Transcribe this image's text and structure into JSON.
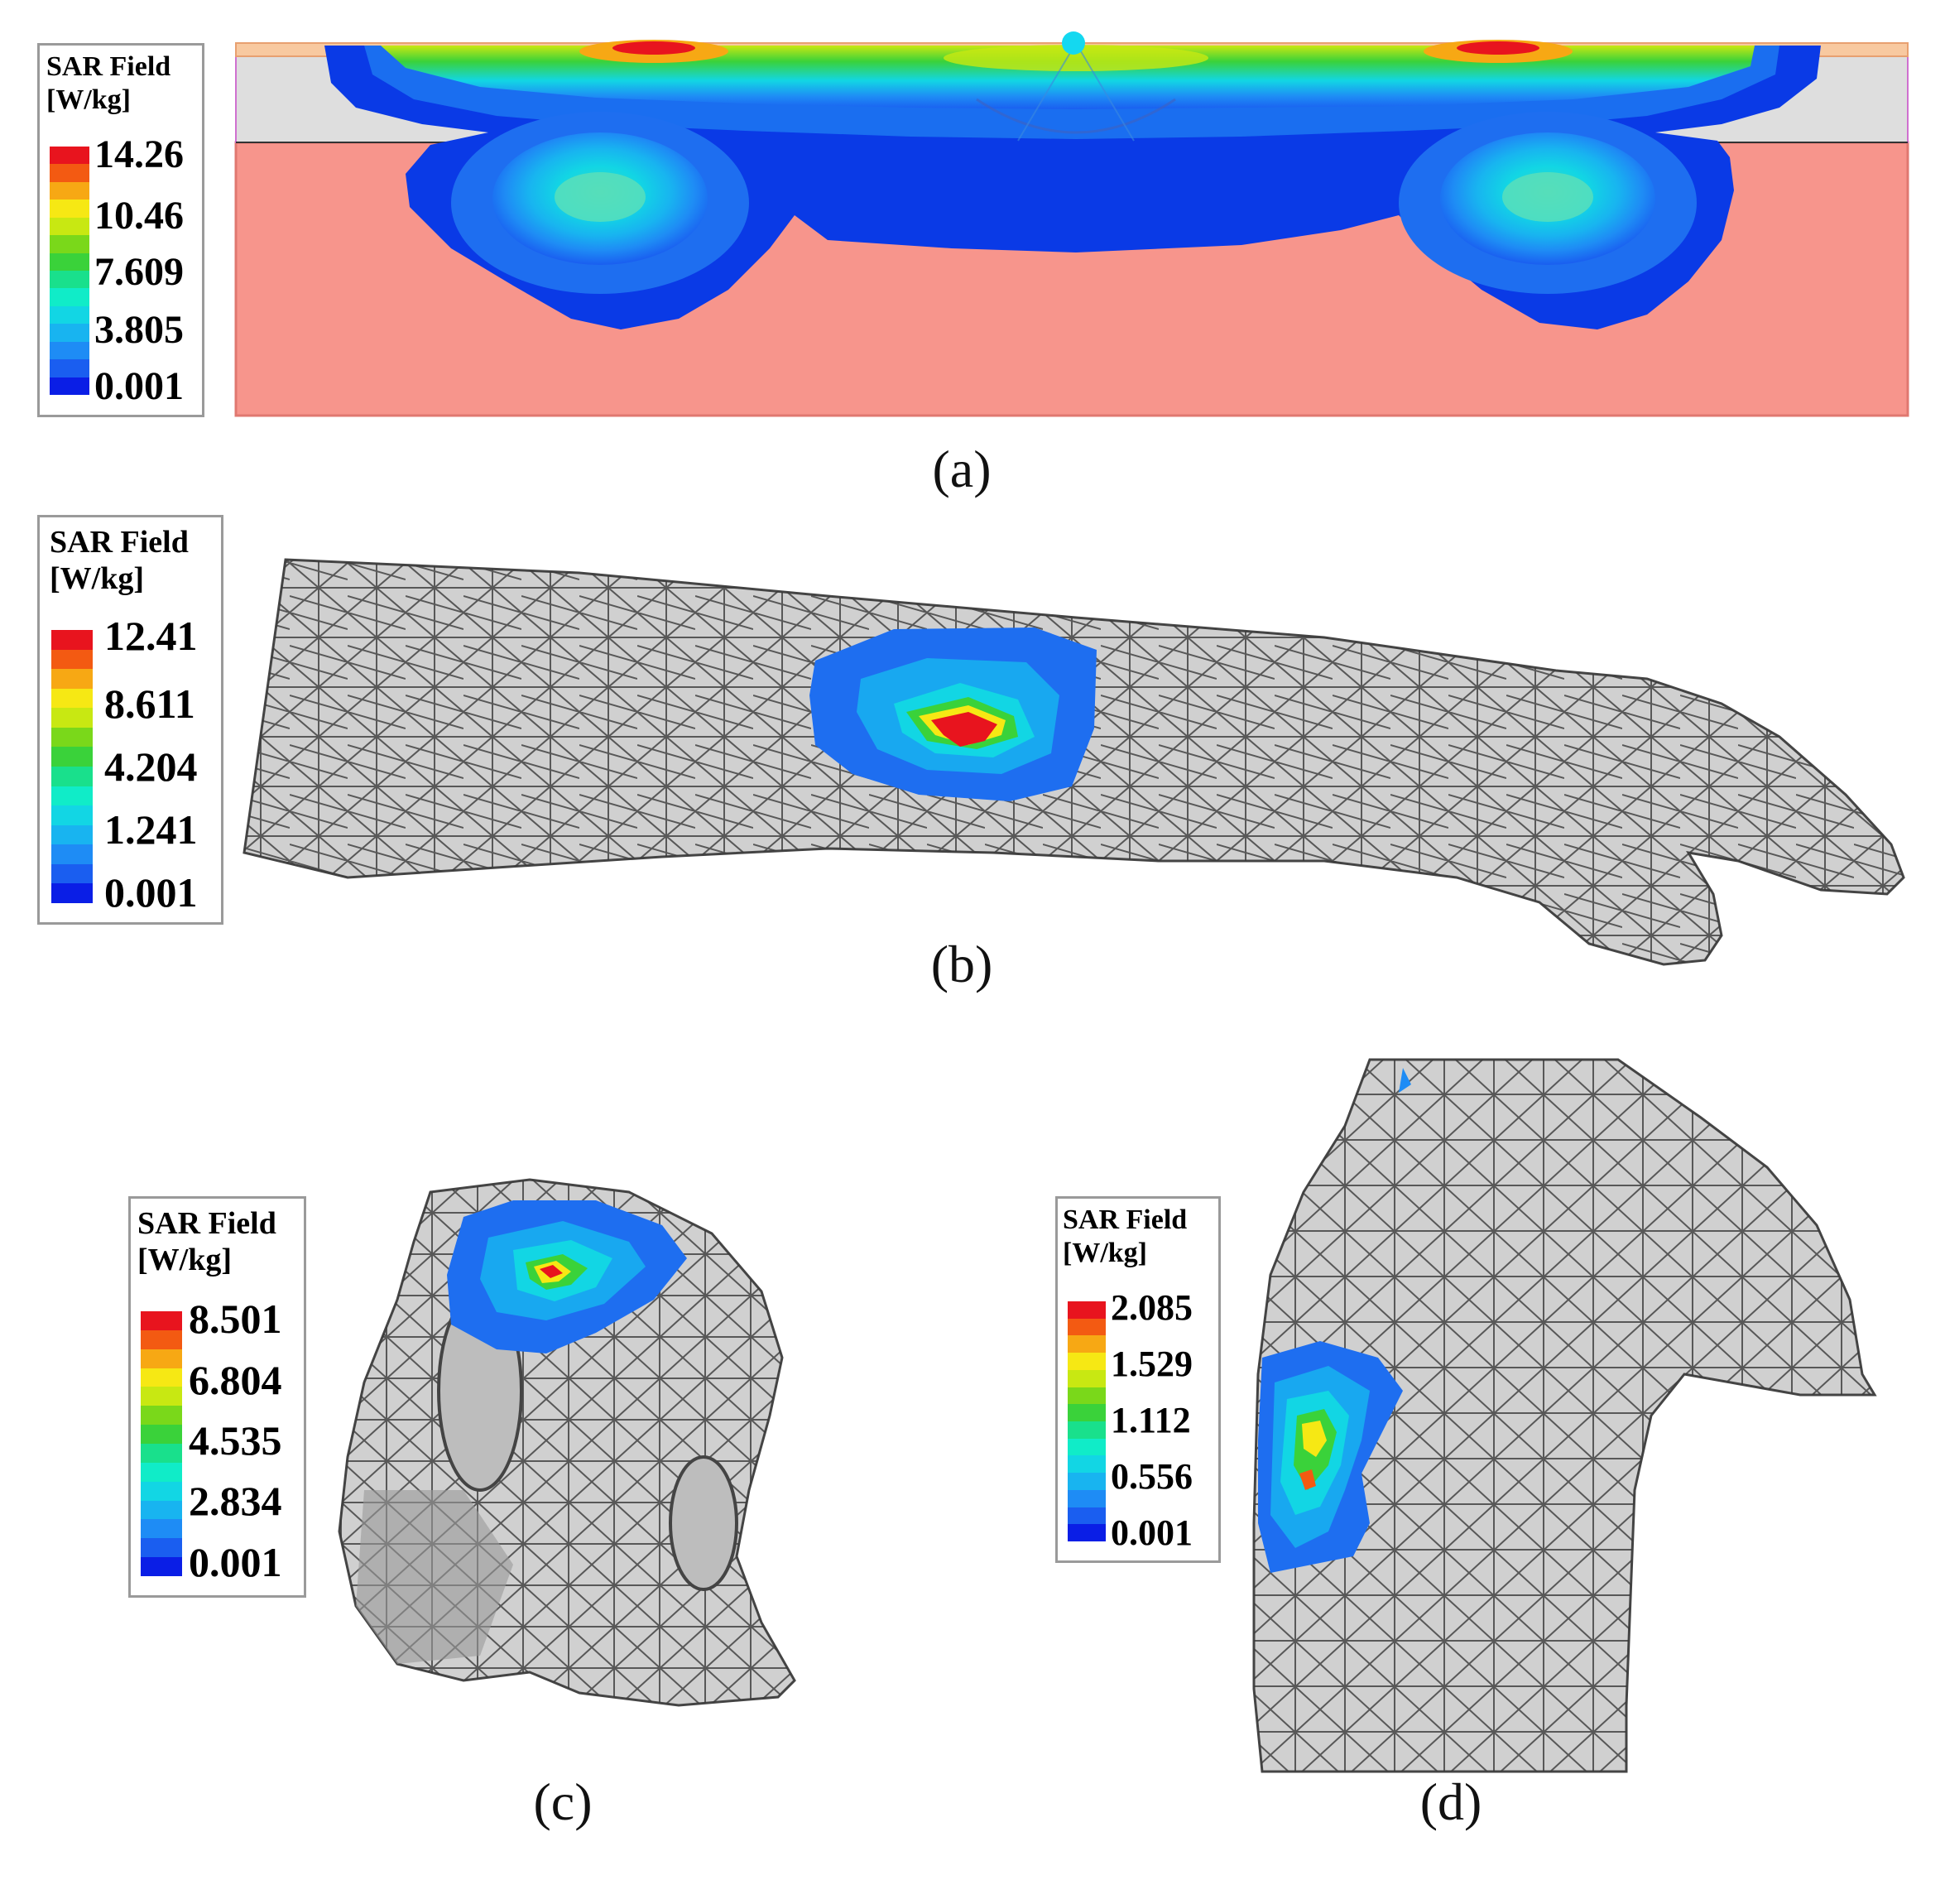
{
  "colors": {
    "background": "#ffffff",
    "tissue_salmon": "#f7958c",
    "skin_layer": "#dedede",
    "top_layer": "#f8c9a0",
    "mesh_fill": "#d0d0d0",
    "mesh_line": "#3a3a3a",
    "legend_border": "#9a9a9a"
  },
  "colormap": [
    "#0a1ee6",
    "#1a5ef0",
    "#1e8cf5",
    "#18b4f0",
    "#12d6e4",
    "#10ecc8",
    "#19e08c",
    "#3ad23a",
    "#7ad81a",
    "#c8e812",
    "#f6e814",
    "#f7a814",
    "#f35a12",
    "#e8141e"
  ],
  "panels": {
    "a": {
      "caption": "(a)",
      "legend": {
        "title_line1": "SAR Field",
        "title_line2": "[W/kg]",
        "ticks": [
          "14.26",
          "10.46",
          "7.609",
          "3.805",
          "0.001"
        ]
      }
    },
    "b": {
      "caption": "(b)",
      "legend": {
        "title_line1": "SAR Field",
        "title_line2": "[W/kg]",
        "ticks": [
          "12.41",
          "8.611",
          "4.204",
          "1.241",
          "0.001"
        ]
      }
    },
    "c": {
      "caption": "(c)",
      "legend": {
        "title_line1": "SAR Field",
        "title_line2": "[W/kg]",
        "ticks": [
          "8.501",
          "6.804",
          "4.535",
          "2.834",
          "0.001"
        ]
      }
    },
    "d": {
      "caption": "(d)",
      "legend": {
        "title_line1": "SAR Field",
        "title_line2": "[W/kg]",
        "ticks": [
          "2.085",
          "1.529",
          "1.112",
          "0.556",
          "0.001"
        ]
      }
    }
  }
}
